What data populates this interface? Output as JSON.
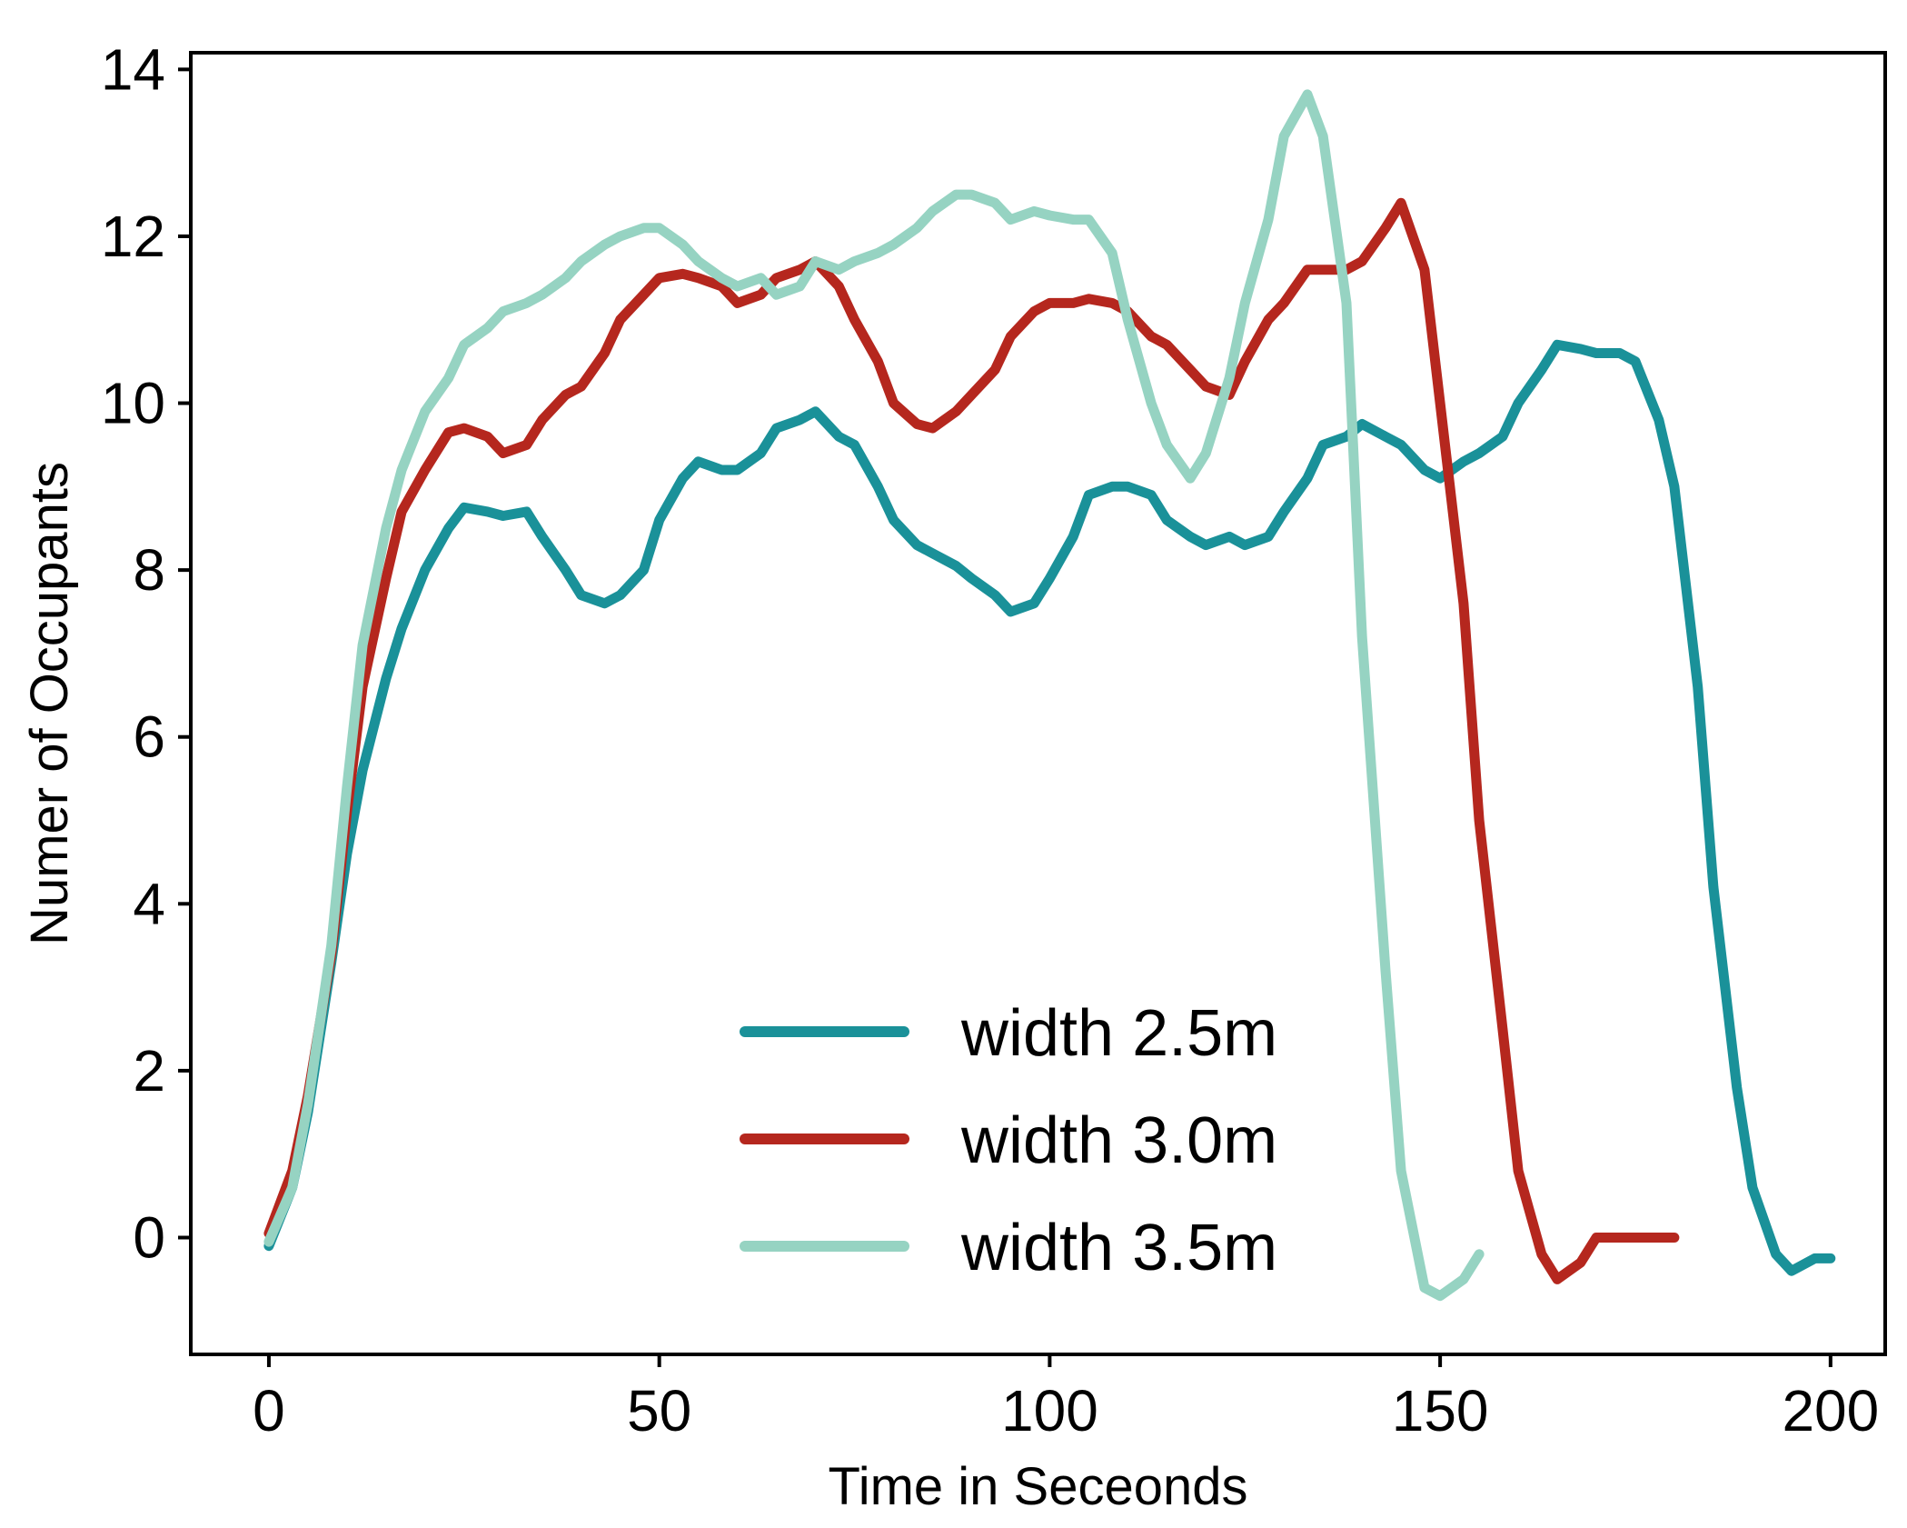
{
  "chart_data": {
    "type": "line",
    "title": "",
    "xlabel": "Time in Seceonds",
    "ylabel": "Numer of Occupants",
    "xlim": [
      -10,
      207
    ],
    "ylim": [
      -1.4,
      14.2
    ],
    "xticks": [
      0,
      50,
      100,
      150,
      200
    ],
    "yticks": [
      0,
      2,
      4,
      6,
      8,
      10,
      12,
      14
    ],
    "grid": false,
    "legend_position": "lower-center",
    "series": [
      {
        "name": "width 2.5m",
        "color": "#1a9199",
        "x": [
          0,
          3,
          5,
          8,
          10,
          12,
          15,
          17,
          20,
          23,
          25,
          28,
          30,
          33,
          35,
          38,
          40,
          43,
          45,
          48,
          50,
          53,
          55,
          58,
          60,
          63,
          65,
          68,
          70,
          73,
          75,
          78,
          80,
          83,
          85,
          88,
          90,
          93,
          95,
          98,
          100,
          103,
          105,
          108,
          110,
          113,
          115,
          118,
          120,
          123,
          125,
          128,
          130,
          133,
          135,
          138,
          140,
          143,
          145,
          148,
          150,
          153,
          155,
          158,
          160,
          163,
          165,
          168,
          170,
          173,
          175,
          178,
          180,
          183,
          185,
          188,
          190,
          193,
          195,
          198,
          200
        ],
        "values": [
          -0.1,
          0.6,
          1.5,
          3.3,
          4.6,
          5.6,
          6.7,
          7.3,
          8.0,
          8.5,
          8.75,
          8.7,
          8.65,
          8.7,
          8.4,
          8.0,
          7.7,
          7.6,
          7.7,
          8.0,
          8.6,
          9.1,
          9.3,
          9.2,
          9.2,
          9.4,
          9.7,
          9.8,
          9.9,
          9.6,
          9.5,
          9.0,
          8.6,
          8.3,
          8.2,
          8.05,
          7.9,
          7.7,
          7.5,
          7.6,
          7.9,
          8.4,
          8.9,
          9.0,
          9.0,
          8.9,
          8.6,
          8.4,
          8.3,
          8.4,
          8.3,
          8.4,
          8.7,
          9.1,
          9.5,
          9.6,
          9.75,
          9.6,
          9.5,
          9.2,
          9.1,
          9.3,
          9.4,
          9.6,
          10.0,
          10.4,
          10.7,
          10.65,
          10.6,
          10.6,
          10.5,
          9.8,
          9.0,
          6.6,
          4.2,
          1.8,
          0.6,
          -0.2,
          -0.4,
          -0.25,
          -0.25
        ]
      },
      {
        "name": "width 3.0m",
        "color": "#b5271e",
        "x": [
          0,
          3,
          5,
          8,
          10,
          12,
          15,
          17,
          20,
          23,
          25,
          28,
          30,
          33,
          35,
          38,
          40,
          43,
          45,
          48,
          50,
          53,
          55,
          58,
          60,
          63,
          65,
          68,
          70,
          73,
          75,
          78,
          80,
          83,
          85,
          88,
          90,
          93,
          95,
          98,
          100,
          103,
          105,
          108,
          110,
          113,
          115,
          118,
          120,
          123,
          125,
          128,
          130,
          133,
          135,
          138,
          140,
          143,
          145,
          148,
          150,
          153,
          155,
          158,
          160,
          163,
          165,
          168,
          170,
          173,
          175,
          178,
          180
        ],
        "values": [
          0.05,
          0.8,
          1.7,
          3.4,
          5.1,
          6.6,
          7.9,
          8.7,
          9.2,
          9.65,
          9.7,
          9.6,
          9.4,
          9.5,
          9.8,
          10.1,
          10.2,
          10.6,
          11.0,
          11.3,
          11.5,
          11.55,
          11.5,
          11.4,
          11.2,
          11.3,
          11.5,
          11.6,
          11.7,
          11.4,
          11.0,
          10.5,
          10.0,
          9.75,
          9.7,
          9.9,
          10.1,
          10.4,
          10.8,
          11.1,
          11.2,
          11.2,
          11.25,
          11.2,
          11.1,
          10.8,
          10.7,
          10.4,
          10.2,
          10.1,
          10.5,
          11.0,
          11.2,
          11.6,
          11.6,
          11.6,
          11.7,
          12.1,
          12.4,
          11.6,
          10.0,
          7.6,
          5.0,
          2.5,
          0.8,
          -0.2,
          -0.5,
          -0.3,
          0.0,
          0.0,
          0.0,
          0.0,
          0.0
        ]
      },
      {
        "name": "width 3.5m",
        "color": "#96d3c2",
        "x": [
          0,
          3,
          5,
          8,
          10,
          12,
          15,
          17,
          20,
          23,
          25,
          28,
          30,
          33,
          35,
          38,
          40,
          43,
          45,
          48,
          50,
          53,
          55,
          58,
          60,
          63,
          65,
          68,
          70,
          73,
          75,
          78,
          80,
          83,
          85,
          88,
          90,
          93,
          95,
          98,
          100,
          103,
          105,
          108,
          110,
          113,
          115,
          118,
          120,
          123,
          125,
          128,
          130,
          133,
          135,
          138,
          140,
          143,
          145,
          148,
          150,
          153,
          155
        ],
        "values": [
          -0.05,
          0.6,
          1.6,
          3.5,
          5.4,
          7.1,
          8.5,
          9.2,
          9.9,
          10.3,
          10.7,
          10.9,
          11.1,
          11.2,
          11.3,
          11.5,
          11.7,
          11.9,
          12.0,
          12.1,
          12.1,
          11.9,
          11.7,
          11.5,
          11.4,
          11.5,
          11.3,
          11.4,
          11.7,
          11.6,
          11.7,
          11.8,
          11.9,
          12.1,
          12.3,
          12.5,
          12.5,
          12.4,
          12.2,
          12.3,
          12.25,
          12.2,
          12.2,
          11.8,
          11.0,
          10.0,
          9.5,
          9.1,
          9.4,
          10.3,
          11.2,
          12.2,
          13.2,
          13.7,
          13.2,
          11.2,
          7.2,
          3.2,
          0.8,
          -0.6,
          -0.7,
          -0.5,
          -0.2
        ]
      }
    ]
  }
}
